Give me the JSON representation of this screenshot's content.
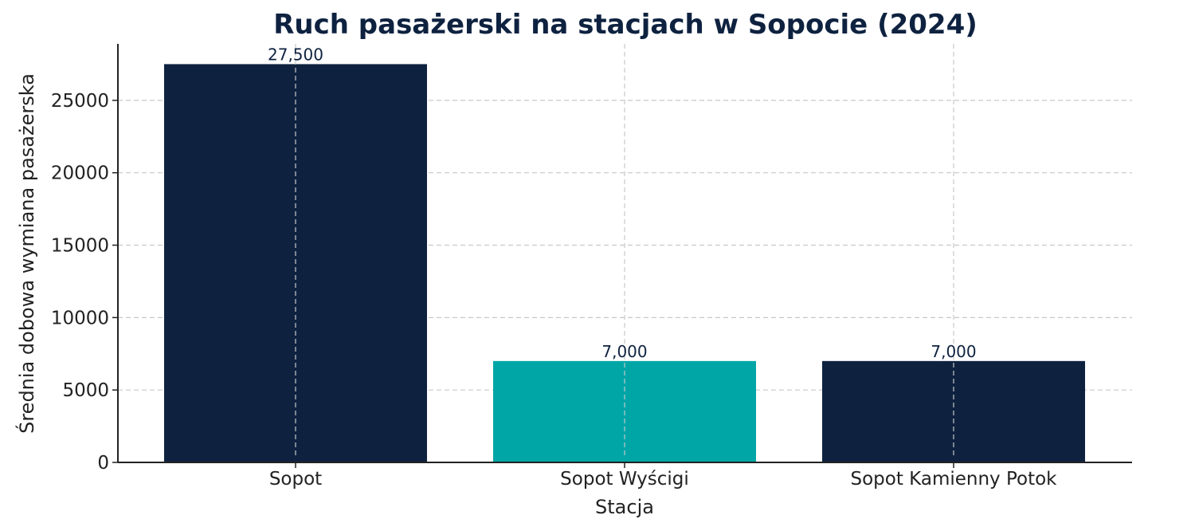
{
  "chart_data": {
    "type": "bar",
    "title": "Ruch pasażerski na stacjach w Sopocie (2024)",
    "xlabel": "Stacja",
    "ylabel": "Średnia dobowa wymiana pasażerska",
    "categories": [
      "Sopot",
      "Sopot Wyścigi",
      "Sopot Kamienny Potok"
    ],
    "values": [
      27500,
      7000,
      7000
    ],
    "value_labels": [
      "27,500",
      "7,000",
      "7,000"
    ],
    "bar_colors": [
      "#0e2240",
      "#00a6a6",
      "#0e2240"
    ],
    "yticks": [
      0,
      5000,
      10000,
      15000,
      20000,
      25000
    ],
    "ylim": [
      0,
      28900
    ],
    "grid": true,
    "colors": {
      "title": "#0e2240",
      "data_label": "#0e2240",
      "grid": "#c8c8c8",
      "axis": "#222222"
    }
  }
}
